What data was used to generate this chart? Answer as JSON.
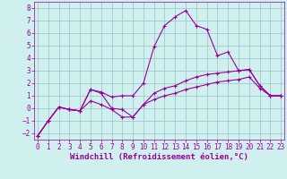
{
  "line1_x": [
    0,
    1,
    2,
    3,
    4,
    5,
    6,
    7,
    8,
    9,
    10,
    11,
    12,
    13,
    14,
    15,
    16,
    17,
    18,
    19,
    20,
    21,
    22,
    23
  ],
  "line1_y": [
    -2.2,
    -1.0,
    0.1,
    -0.1,
    -0.2,
    1.5,
    1.3,
    0.9,
    1.0,
    1.0,
    2.0,
    4.9,
    6.6,
    7.3,
    7.8,
    6.6,
    6.3,
    4.2,
    4.5,
    3.0,
    3.1,
    1.8,
    1.0,
    1.0
  ],
  "line2_x": [
    0,
    1,
    2,
    3,
    4,
    5,
    6,
    7,
    8,
    9,
    10,
    11,
    12,
    13,
    14,
    15,
    16,
    17,
    18,
    19,
    20,
    21,
    22,
    23
  ],
  "line2_y": [
    -2.2,
    -1.0,
    0.1,
    -0.1,
    -0.2,
    1.5,
    1.2,
    0.0,
    -0.1,
    -0.7,
    0.3,
    1.2,
    1.6,
    1.8,
    2.2,
    2.5,
    2.7,
    2.8,
    2.9,
    3.0,
    3.1,
    1.8,
    1.0,
    1.0
  ],
  "line3_x": [
    0,
    1,
    2,
    3,
    4,
    5,
    6,
    7,
    8,
    9,
    10,
    11,
    12,
    13,
    14,
    15,
    16,
    17,
    18,
    19,
    20,
    21,
    22,
    23
  ],
  "line3_y": [
    -2.2,
    -1.0,
    0.1,
    -0.1,
    -0.2,
    0.6,
    0.3,
    -0.1,
    -0.7,
    -0.7,
    0.3,
    0.7,
    1.0,
    1.2,
    1.5,
    1.7,
    1.9,
    2.1,
    2.2,
    2.3,
    2.5,
    1.6,
    1.0,
    1.0
  ],
  "line_color": "#990099",
  "bg_color": "#d0f0f0",
  "grid_color": "#a0cccc",
  "xlabel": "Windchill (Refroidissement éolien,°C)",
  "xlabel_fontsize": 6.5,
  "tick_fontsize": 5.5,
  "ylim": [
    -2.5,
    8.5
  ],
  "xlim": [
    -0.3,
    23.3
  ],
  "yticks": [
    -2,
    -1,
    0,
    1,
    2,
    3,
    4,
    5,
    6,
    7,
    8
  ],
  "xticks": [
    0,
    1,
    2,
    3,
    4,
    5,
    6,
    7,
    8,
    9,
    10,
    11,
    12,
    13,
    14,
    15,
    16,
    17,
    18,
    19,
    20,
    21,
    22,
    23
  ]
}
